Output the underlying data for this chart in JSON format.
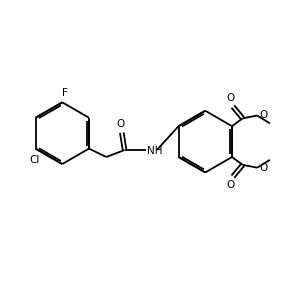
{
  "bg_color": "#ffffff",
  "line_color": "#000000",
  "lw": 1.3,
  "figsize": [
    2.9,
    2.86
  ],
  "dpi": 100,
  "xlim": [
    0,
    10
  ],
  "ylim": [
    0,
    10
  ]
}
